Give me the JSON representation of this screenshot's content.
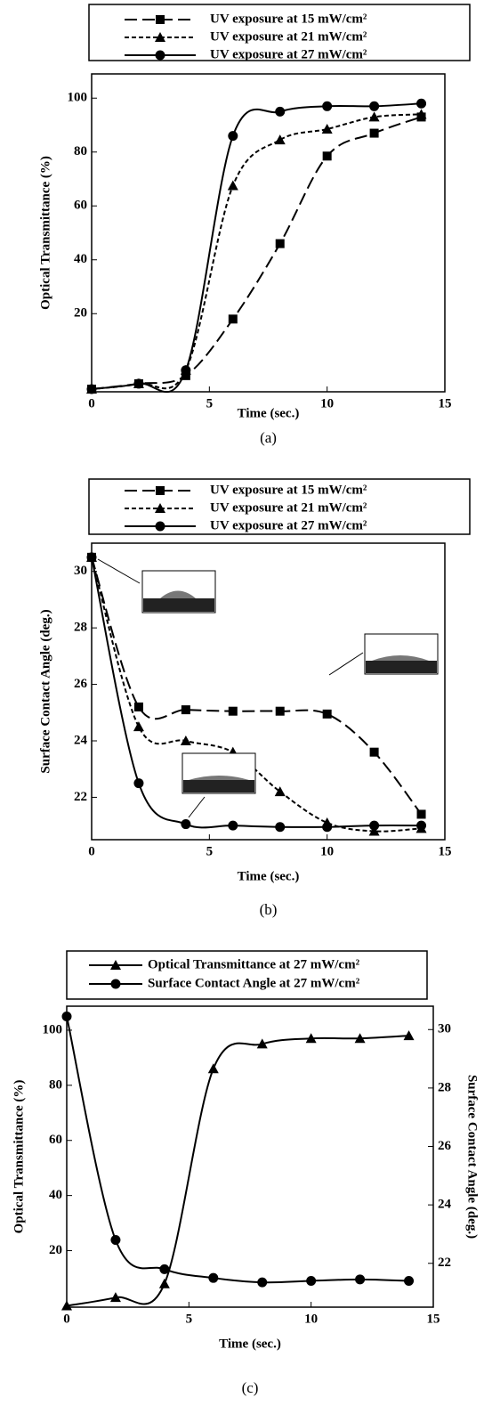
{
  "chart_data": [
    {
      "type": "line",
      "caption": "(a)",
      "xlabel": "Time (sec.)",
      "ylabel": "Optical Transmittance (%)",
      "x": [
        0,
        2,
        4,
        6,
        8,
        10,
        12,
        14
      ],
      "xlim": [
        0,
        15
      ],
      "xticks": [
        0,
        5,
        10,
        15
      ],
      "ylim": [
        -9,
        109
      ],
      "yticks": [
        20,
        40,
        60,
        80,
        100
      ],
      "series": [
        {
          "name": "UV exposure at 15 mW/cm²",
          "color": "#000000",
          "dash": "long",
          "marker": "square",
          "values": [
            -8,
            -6,
            -3,
            18,
            46,
            78.5,
            87,
            93
          ]
        },
        {
          "name": "UV exposure at 21 mW/cm²",
          "color": "#000000",
          "dash": "short",
          "marker": "triangle",
          "values": [
            -8,
            -6,
            -1,
            67.5,
            84.5,
            88.5,
            93,
            94
          ]
        },
        {
          "name": "UV exposure at 27 mW/cm²",
          "color": "#000000",
          "dash": "solid",
          "marker": "circle",
          "values": [
            -8,
            -6,
            -1,
            86,
            95,
            97,
            97,
            98
          ]
        }
      ]
    },
    {
      "type": "line",
      "caption": "(b)",
      "xlabel": "Time (sec.)",
      "ylabel": "Surface Contact Angle (deg.)",
      "x": [
        0,
        2,
        4,
        6,
        8,
        10,
        12,
        14
      ],
      "xlim": [
        0,
        15
      ],
      "xticks": [
        0,
        5,
        10,
        15
      ],
      "ylim": [
        20.5,
        31
      ],
      "yticks": [
        22,
        24,
        26,
        28,
        30
      ],
      "series": [
        {
          "name": "UV exposure at 15 mW/cm²",
          "color": "#000000",
          "dash": "long",
          "marker": "square",
          "values": [
            30.5,
            25.2,
            25.1,
            25.05,
            25.05,
            24.95,
            23.6,
            21.4
          ]
        },
        {
          "name": "UV exposure at 21 mW/cm²",
          "color": "#000000",
          "dash": "short",
          "marker": "triangle",
          "values": [
            30.5,
            24.5,
            24.0,
            23.6,
            22.2,
            21.1,
            20.8,
            20.9
          ]
        },
        {
          "name": "UV exposure at 27 mW/cm²",
          "color": "#000000",
          "dash": "solid",
          "marker": "circle",
          "values": [
            30.5,
            22.5,
            21.05,
            21.0,
            20.95,
            20.95,
            21.0,
            21.0
          ]
        }
      ]
    },
    {
      "type": "line",
      "caption": "(c)",
      "xlabel": "Time (sec.)",
      "ylabel": "Optical Transmittance (%)",
      "y2label": "Surface Contact Angle (deg.)",
      "x": [
        0,
        2,
        4,
        6,
        8,
        10,
        12,
        14
      ],
      "xlim": [
        0,
        15
      ],
      "xticks": [
        0,
        5,
        10,
        15
      ],
      "ylim": [
        -0.5,
        108.7
      ],
      "yticks": [
        20,
        40,
        60,
        80,
        100
      ],
      "y2lim": [
        20.5,
        30.8
      ],
      "y2ticks": [
        22,
        24,
        26,
        28,
        30
      ],
      "series": [
        {
          "name": "Optical Transmittance at 27 mW/cm²",
          "color": "#000000",
          "dash": "solid",
          "marker": "triangle",
          "values": [
            0,
            3,
            8,
            86,
            95,
            97,
            97,
            98
          ]
        },
        {
          "name": "Surface Contact Angle at 27 mW/cm²",
          "color": "#000000",
          "dash": "solid",
          "marker": "circle",
          "axis": "y2",
          "values": [
            30.45,
            22.8,
            21.8,
            21.5,
            21.35,
            21.4,
            21.45,
            21.4
          ]
        }
      ]
    }
  ]
}
